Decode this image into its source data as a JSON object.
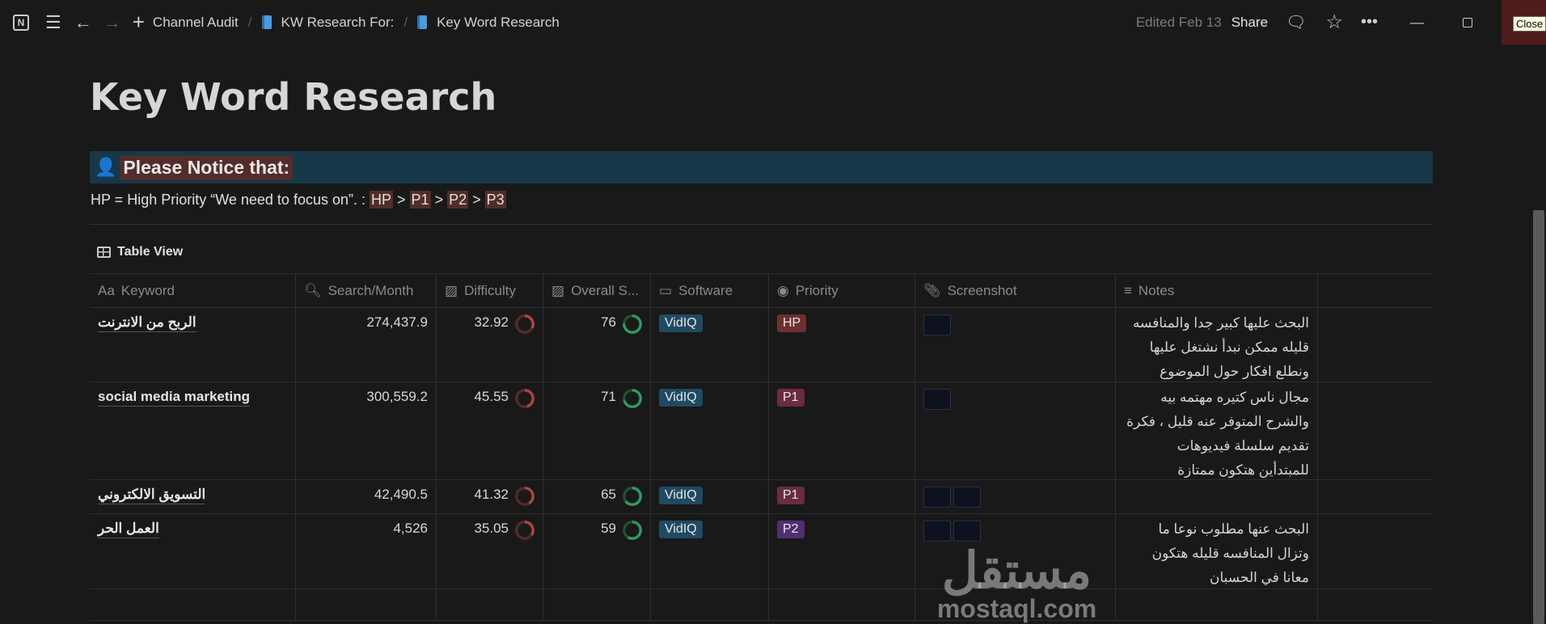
{
  "topbar": {
    "breadcrumbs": [
      "Channel Audit",
      "KW Research For:",
      "Key Word Research"
    ],
    "edited": "Edited Feb 13",
    "share": "Share",
    "close_tooltip": "Close"
  },
  "page": {
    "title": "Key Word Research",
    "callout": "Please Notice that:",
    "legend_prefix": "HP = High Priority “We need to focus on”. : ",
    "legend_tags": [
      "HP",
      "P1",
      "P2",
      "P3"
    ],
    "legend_sep": " > "
  },
  "view": {
    "label": "Table View"
  },
  "columns": [
    "Keyword",
    "Search/Month",
    "Difficulty",
    "Overall S...",
    "Software",
    "Priority",
    "Screenshot",
    "Notes"
  ],
  "rows": [
    {
      "keyword": "الربح من الانترنت",
      "search": "274,437.9",
      "difficulty": "32.92",
      "overall": "76",
      "software": "VidIQ",
      "priority": "HP",
      "screenshots": 1,
      "notes": "البحث عليها كبير جدا والمنافسه قليله ممكن نبدأ نشتغل عليها ونطلع افكار حول الموضوع"
    },
    {
      "keyword": "social media marketing",
      "search": "300,559.2",
      "difficulty": "45.55",
      "overall": "71",
      "software": "VidIQ",
      "priority": "P1",
      "screenshots": 1,
      "notes": "مجال ناس كتيره مهتمه بيه والشرح المتوفر عنه قليل ، فكرة تقديم سلسلة فيديوهات للمبتدأين هتكون ممتازة"
    },
    {
      "keyword": "التسويق الالكتروني",
      "search": "42,490.5",
      "difficulty": "41.32",
      "overall": "65",
      "software": "VidIQ",
      "priority": "P1",
      "screenshots": 2,
      "notes": ""
    },
    {
      "keyword": "العمل الحر",
      "search": "4,526",
      "difficulty": "35.05",
      "overall": "59",
      "software": "VidIQ",
      "priority": "P2",
      "screenshots": 2,
      "notes": "البحث عنها مطلوب نوعا ما وتزال المنافسه قليله هتكون معانا في الحسبان"
    }
  ],
  "colors": {
    "HP": "#6e2f2f",
    "P1": "#6a2b43",
    "P2": "#4f2f72",
    "software": "#1f4a63",
    "difficulty_ring": "#b04444",
    "overall_ring": "#2e9e5e"
  },
  "watermark": {
    "arabic": "مستقل",
    "latin": "mostaql.com"
  }
}
